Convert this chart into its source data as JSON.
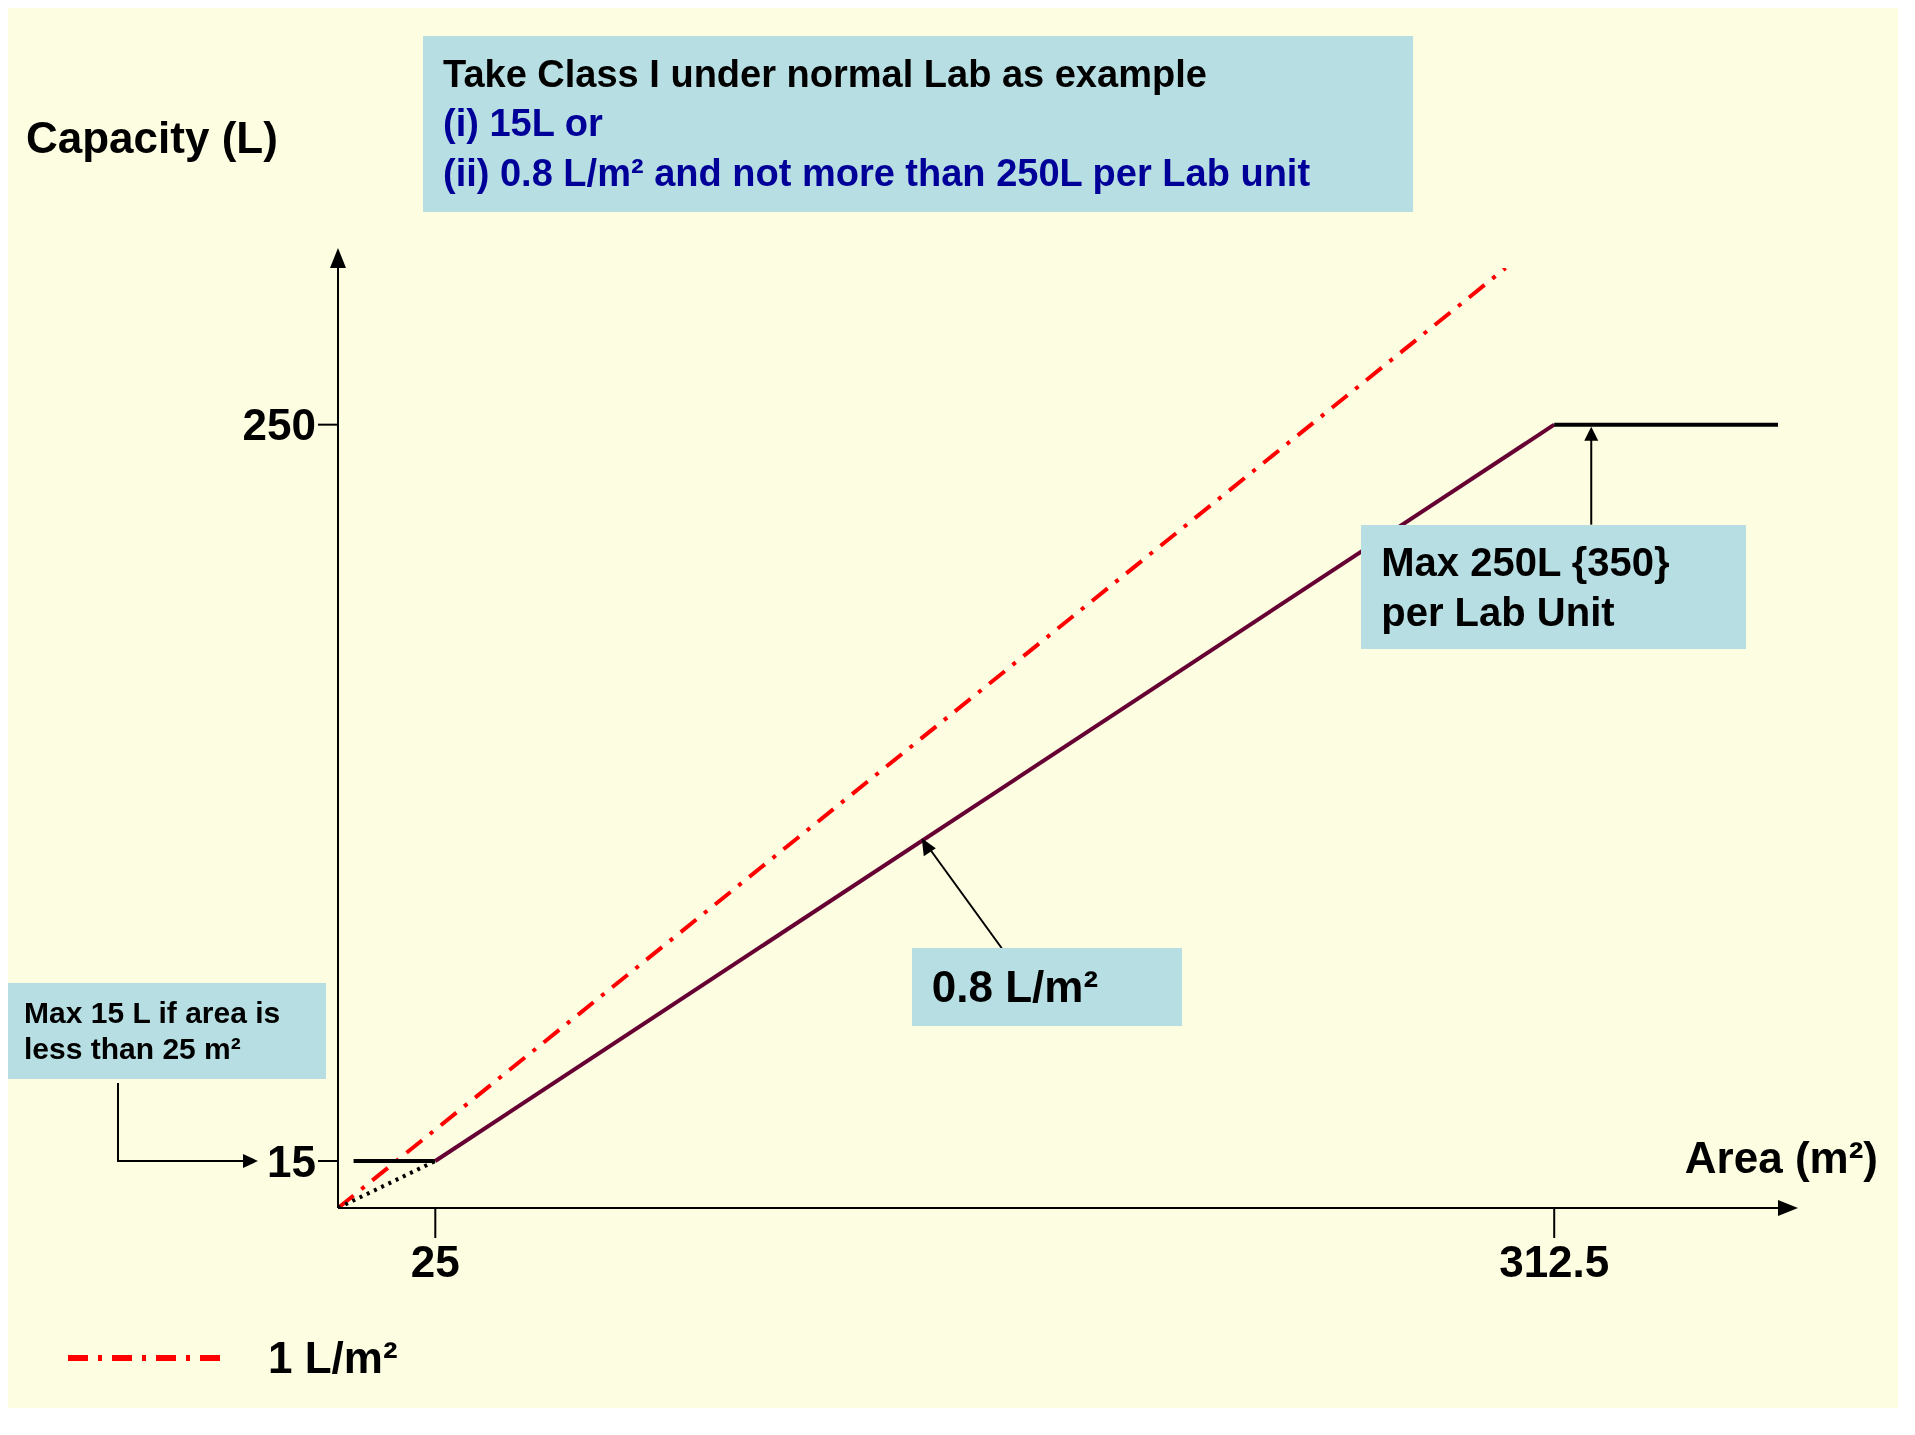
{
  "chart_data": {
    "type": "line",
    "title": "Take Class I under normal Lab as example",
    "xlabel": "Area (m²)",
    "ylabel": "Capacity (L)",
    "xlim": [
      0,
      370
    ],
    "ylim": [
      0,
      300
    ],
    "xticks": [
      25,
      312.5
    ],
    "yticks": [
      15,
      250
    ],
    "grid": false,
    "legend": "bottom left",
    "series": [
      {
        "name": "1 L/m²",
        "color": "#ff0000",
        "line_style": "dashed",
        "x": [
          0,
          300
        ],
        "values": [
          0,
          300
        ]
      },
      {
        "color": "#000000",
        "line_style": "dotted",
        "x": [
          0,
          25
        ],
        "values": [
          0,
          15
        ]
      },
      {
        "color": "#000000",
        "line_style": "solid",
        "x": [
          4,
          25
        ],
        "values": [
          15,
          15
        ]
      },
      {
        "color": "#660033",
        "line_style": "solid",
        "x": [
          25,
          312.5
        ],
        "values": [
          15,
          250
        ]
      },
      {
        "color": "#000000",
        "line_style": "solid",
        "x": [
          312.5,
          370
        ],
        "values": [
          250,
          250
        ]
      }
    ],
    "annotations": [
      "(i) 15L or",
      "(ii) 0.8 L/m² and not more than 250L per Lab unit",
      "Max 15 L if area is less than 25 m²",
      {
        "text": "0.8 L/m²",
        "x": 150,
        "y": 118
      },
      {
        "text": "Max 250L {350} per Lab Unit",
        "x": 340,
        "y": 250
      }
    ]
  }
}
